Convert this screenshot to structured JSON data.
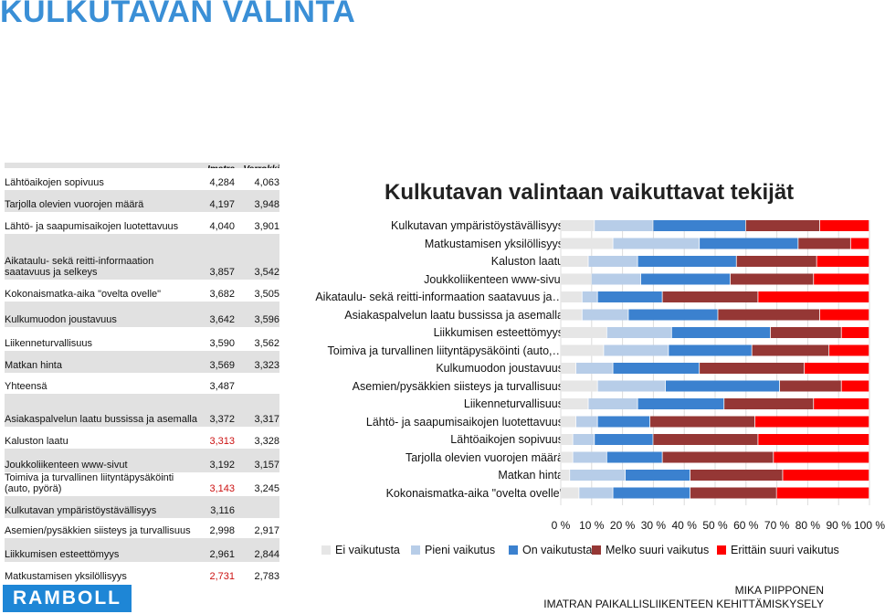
{
  "page_title": "KULKUTAVAN VALINTA",
  "table": {
    "col1": "Imatra",
    "col2": "Verrokki",
    "rows": [
      {
        "label": "Lähtöaikojen sopivuus",
        "v1": "4,284",
        "v2": "4,063",
        "red1": false
      },
      {
        "label": "Tarjolla olevien vuorojen määrä",
        "v1": "4,197",
        "v2": "3,948",
        "red1": false
      },
      {
        "label": "Lähtö- ja saapumisaikojen luotettavuus",
        "v1": "4,040",
        "v2": "3,901",
        "red1": false
      },
      {
        "label": "Aikataulu- sekä reitti-informaation saatavuus ja selkeys",
        "v1": "3,857",
        "v2": "3,542",
        "red1": false
      },
      {
        "label": "Kokonaismatka-aika \"ovelta ovelle\"",
        "v1": "3,682",
        "v2": "3,505",
        "red1": false
      },
      {
        "label": "Kulkumuodon joustavuus",
        "v1": "3,642",
        "v2": "3,596",
        "red1": false
      },
      {
        "label": "Liikenneturvallisuus",
        "v1": "3,590",
        "v2": "3,562",
        "red1": false
      },
      {
        "label": "Matkan hinta",
        "v1": "3,569",
        "v2": "3,323",
        "red1": false
      },
      {
        "label": "Yhteensä",
        "v1": "3,487",
        "v2": "",
        "red1": false
      },
      {
        "label": "Asiakaspalvelun laatu bussissa ja asemalla",
        "v1": "3,372",
        "v2": "3,317",
        "red1": false
      },
      {
        "label": "Kaluston laatu",
        "v1": "3,313",
        "v2": "3,328",
        "red1": true
      },
      {
        "label": "Joukkoliikenteen www-sivut",
        "v1": "3,192",
        "v2": "3,157",
        "red1": false
      },
      {
        "label": "Toimiva ja turvallinen liityntäpysäköinti (auto, pyörä)",
        "v1": "3,143",
        "v2": "3,245",
        "red1": true
      },
      {
        "label": "Kulkutavan ympäristöystävällisyys",
        "v1": "3,116",
        "v2": "",
        "red1": false
      },
      {
        "label": "Asemien/pysäkkien siisteys ja turvallisuus",
        "v1": "2,998",
        "v2": "2,917",
        "red1": false
      },
      {
        "label": "Liikkumisen esteettömyys",
        "v1": "2,961",
        "v2": "2,844",
        "red1": false
      },
      {
        "label": "Matkustamisen yksilöllisyys",
        "v1": "2,731",
        "v2": "2,783",
        "red1": true
      }
    ]
  },
  "chart_data": {
    "type": "bar",
    "orientation": "horizontal",
    "stacked": "percent",
    "title": "Kulkutavan valintaan vaikuttavat tekijät",
    "categories": [
      "Kulkutavan ympäristöystävällisyys",
      "Matkustamisen yksilöllisyys",
      "Kaluston laatu",
      "Joukkoliikenteen www-sivut",
      "Aikataulu- sekä reitti-informaation saatavuus ja…",
      "Asiakaspalvelun laatu bussissa ja asemalla",
      "Liikkumisen esteettömyys",
      "Toimiva ja turvallinen liityntäpysäköinti (auto,…",
      "Kulkumuodon joustavuus",
      "Asemien/pysäkkien siisteys ja turvallisuus",
      "Liikenneturvallisuus",
      "Lähtö- ja saapumisaikojen luotettavuus",
      "Lähtöaikojen sopivuus",
      "Tarjolla olevien vuorojen määrä",
      "Matkan hinta",
      "Kokonaismatka-aika \"ovelta ovelle\""
    ],
    "series": [
      {
        "name": "Ei vaikutusta",
        "color": "#e6e6e6",
        "values": [
          11,
          17,
          9,
          10,
          7,
          7,
          15,
          14,
          5,
          12,
          9,
          5,
          4,
          4,
          3,
          6
        ]
      },
      {
        "name": "Pieni vaikutus",
        "color": "#b7cde8",
        "values": [
          19,
          28,
          16,
          16,
          5,
          15,
          21,
          21,
          12,
          22,
          16,
          7,
          7,
          11,
          18,
          11
        ]
      },
      {
        "name": "On vaikutusta",
        "color": "#3b81cf",
        "values": [
          30,
          32,
          32,
          29,
          21,
          29,
          32,
          27,
          28,
          37,
          28,
          17,
          19,
          18,
          21,
          25
        ]
      },
      {
        "name": "Melko suuri vaikutus",
        "color": "#953735",
        "values": [
          24,
          17,
          26,
          27,
          31,
          33,
          23,
          25,
          34,
          20,
          29,
          34,
          34,
          36,
          30,
          28
        ]
      },
      {
        "name": "Erittäin suuri vaikutus",
        "color": "#ff0000",
        "values": [
          16,
          6,
          17,
          18,
          36,
          16,
          9,
          13,
          21,
          9,
          18,
          37,
          36,
          31,
          28,
          30
        ]
      }
    ],
    "x_ticks": [
      "0 %",
      "10 %",
      "20 %",
      "30 %",
      "40 %",
      "50 %",
      "60 %",
      "70 %",
      "80 %",
      "90 %",
      "100 %"
    ],
    "xlim": [
      0,
      100
    ],
    "grid": true,
    "legend_position": "bottom"
  },
  "footer": {
    "logo": "RAMBOLL",
    "author": "MIKA PIIPPONEN",
    "org": "IMATRAN PAIKALLISLIIKENTEEN KEHITTÄMISKYSELY"
  }
}
